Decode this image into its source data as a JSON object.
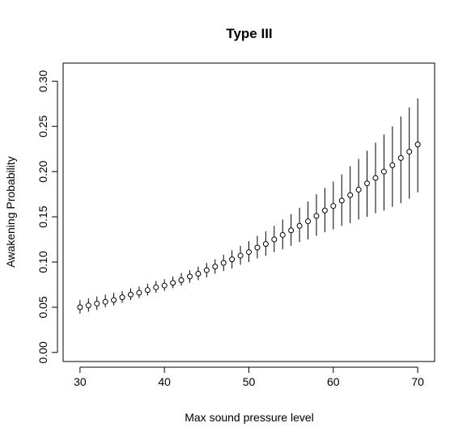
{
  "chart_data": {
    "type": "scatter",
    "title": "Type III",
    "xlabel": "Max sound pressure level",
    "ylabel": "Awakening Probability",
    "xlim": [
      28,
      72
    ],
    "ylim": [
      -0.01,
      0.32
    ],
    "x_ticks": [
      30,
      40,
      50,
      60,
      70
    ],
    "x_tick_labels": [
      "30",
      "40",
      "50",
      "60",
      "70"
    ],
    "y_ticks": [
      0.0,
      0.05,
      0.1,
      0.15,
      0.2,
      0.25,
      0.3
    ],
    "y_tick_labels": [
      "0.00",
      "0.05",
      "0.10",
      "0.15",
      "0.20",
      "0.25",
      "0.30"
    ],
    "grid": false,
    "legend": "none",
    "error_bars": true,
    "series": [
      {
        "x": [
          30,
          31,
          32,
          33,
          34,
          35,
          36,
          37,
          38,
          39,
          40,
          41,
          42,
          43,
          44,
          45,
          46,
          47,
          48,
          49,
          50,
          51,
          52,
          53,
          54,
          55,
          56,
          57,
          58,
          59,
          60,
          61,
          62,
          63,
          64,
          65,
          66,
          67,
          68,
          69,
          70
        ],
        "y": [
          0.05,
          0.052,
          0.054,
          0.056,
          0.058,
          0.061,
          0.064,
          0.066,
          0.069,
          0.072,
          0.074,
          0.077,
          0.08,
          0.084,
          0.087,
          0.091,
          0.095,
          0.099,
          0.103,
          0.107,
          0.111,
          0.116,
          0.12,
          0.125,
          0.13,
          0.135,
          0.14,
          0.145,
          0.151,
          0.157,
          0.162,
          0.168,
          0.174,
          0.18,
          0.187,
          0.193,
          0.2,
          0.207,
          0.215,
          0.222,
          0.23
        ],
        "lower": [
          0.043,
          0.045,
          0.047,
          0.05,
          0.052,
          0.055,
          0.058,
          0.06,
          0.063,
          0.066,
          0.068,
          0.071,
          0.074,
          0.077,
          0.08,
          0.083,
          0.087,
          0.09,
          0.093,
          0.097,
          0.1,
          0.104,
          0.107,
          0.111,
          0.114,
          0.118,
          0.122,
          0.125,
          0.129,
          0.133,
          0.136,
          0.14,
          0.143,
          0.147,
          0.15,
          0.154,
          0.157,
          0.161,
          0.165,
          0.17,
          0.177
        ],
        "upper": [
          0.058,
          0.06,
          0.062,
          0.064,
          0.066,
          0.068,
          0.071,
          0.073,
          0.076,
          0.079,
          0.081,
          0.084,
          0.088,
          0.091,
          0.095,
          0.099,
          0.103,
          0.108,
          0.113,
          0.118,
          0.123,
          0.129,
          0.134,
          0.14,
          0.147,
          0.153,
          0.16,
          0.167,
          0.175,
          0.182,
          0.189,
          0.197,
          0.206,
          0.214,
          0.223,
          0.232,
          0.241,
          0.25,
          0.261,
          0.271,
          0.281
        ]
      }
    ]
  }
}
